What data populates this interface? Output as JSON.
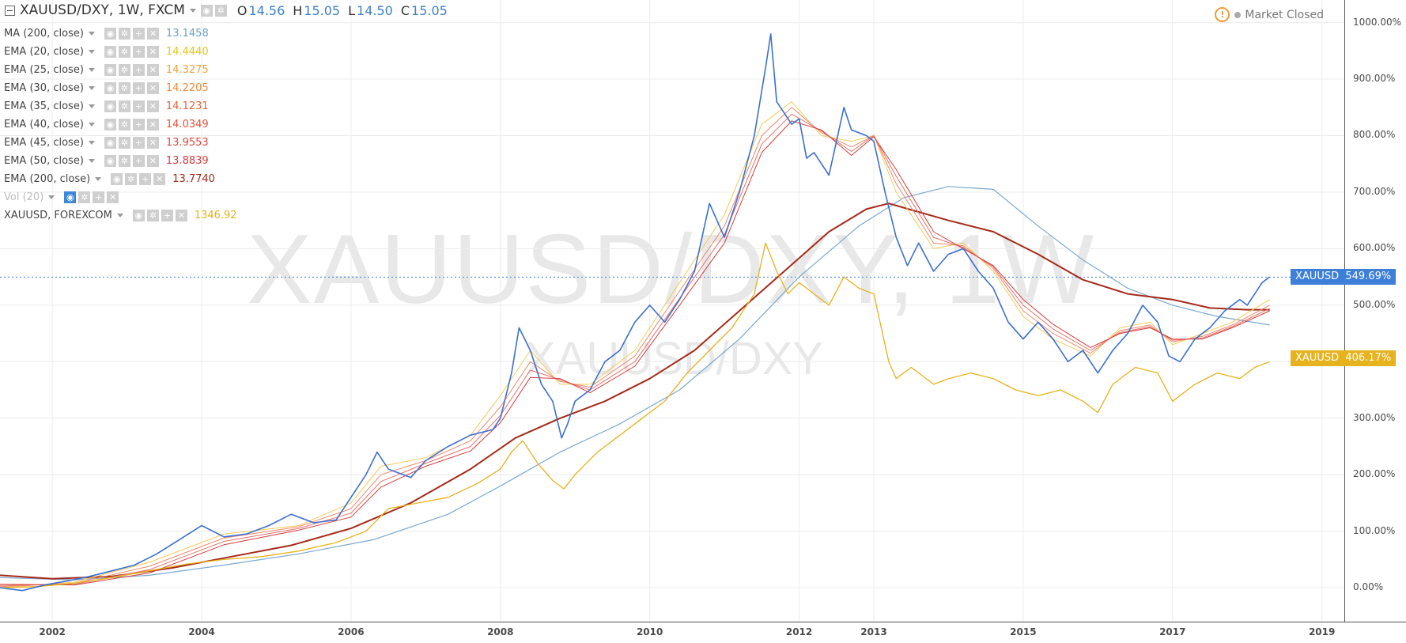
{
  "header": {
    "title": "XAUUSD/DXY, 1W, FXCM",
    "ohlc": [
      {
        "label": "O",
        "value": "14.56"
      },
      {
        "label": "H",
        "value": "15.05"
      },
      {
        "label": "L",
        "value": "14.50"
      },
      {
        "label": "C",
        "value": "15.05"
      }
    ],
    "status_text": "Market Closed",
    "warning_icon": "exclamation-circle-icon"
  },
  "watermark": {
    "main": "XAUUSD/DXY, 1W",
    "sub": "XAUUSD/DXY"
  },
  "indicators": [
    {
      "name": "MA (200, close)",
      "value": "13.1458",
      "color": "#6a9fc7",
      "muted": false
    },
    {
      "name": "EMA (20, close)",
      "value": "14.4440",
      "color": "#e0c619",
      "muted": false
    },
    {
      "name": "EMA (25, close)",
      "value": "14.3275",
      "color": "#f0a23a",
      "muted": false
    },
    {
      "name": "EMA (30, close)",
      "value": "14.2205",
      "color": "#ef8a3a",
      "muted": false
    },
    {
      "name": "EMA (35, close)",
      "value": "14.1231",
      "color": "#e8623a",
      "muted": false
    },
    {
      "name": "EMA (40, close)",
      "value": "14.0349",
      "color": "#e4503a",
      "muted": false
    },
    {
      "name": "EMA (45, close)",
      "value": "13.9553",
      "color": "#e0453d",
      "muted": false
    },
    {
      "name": "EMA (50, close)",
      "value": "13.8839",
      "color": "#d63c3c",
      "muted": false
    },
    {
      "name": "EMA (200, close)",
      "value": "13.7740",
      "color": "#a52a1a",
      "muted": false
    },
    {
      "name": "Vol (20)",
      "value": "",
      "color": "#bdbdbd",
      "muted": true
    },
    {
      "name": "XAUUSD, FOREXCOM",
      "value": "1346.92",
      "color": "#e6b21e",
      "muted": false
    }
  ],
  "price_tags": [
    {
      "label": "XAUUSD",
      "value": "549.69%",
      "color": "#3d7fd9"
    },
    {
      "label": "XAUUSD",
      "value": "406.17%",
      "color": "#e6b21e"
    }
  ],
  "chart_data": {
    "type": "line",
    "title": "XAUUSD/DXY, 1W, FXCM",
    "xlabel": "",
    "ylabel": "",
    "x_ticks": [
      "2002",
      "2004",
      "2006",
      "2008",
      "2010",
      "2012",
      "2013",
      "2015",
      "2017",
      "2019"
    ],
    "y_ticks": [
      "0.00%",
      "100.00%",
      "200.00%",
      "300.00%",
      "400.00%",
      "500.00%",
      "600.00%",
      "700.00%",
      "800.00%",
      "900.00%",
      "1000.00%"
    ],
    "y_unit": "%",
    "ylim": [
      -60,
      1040
    ],
    "xlim": [
      2001.3,
      2019.3
    ],
    "grid": true,
    "last_value_line": 549.69,
    "series": [
      {
        "name": "XAUUSD/DXY",
        "color": "#3d6fd0",
        "width": 1.6,
        "x": [
          2001.3,
          2001.6,
          2001.9,
          2002.2,
          2002.5,
          2002.8,
          2003.1,
          2003.4,
          2003.7,
          2004.0,
          2004.3,
          2004.6,
          2004.9,
          2005.2,
          2005.5,
          2005.8,
          2006.0,
          2006.2,
          2006.35,
          2006.5,
          2006.8,
          2007.0,
          2007.3,
          2007.6,
          2007.9,
          2008.0,
          2008.15,
          2008.25,
          2008.4,
          2008.55,
          2008.7,
          2008.82,
          2008.9,
          2009.0,
          2009.2,
          2009.4,
          2009.6,
          2009.8,
          2010.0,
          2010.2,
          2010.4,
          2010.6,
          2010.8,
          2011.0,
          2011.2,
          2011.4,
          2011.55,
          2011.62,
          2011.7,
          2011.8,
          2011.9,
          2012.0,
          2012.1,
          2012.2,
          2012.4,
          2012.5,
          2012.6,
          2012.7,
          2012.9,
          2013.0,
          2013.15,
          2013.3,
          2013.45,
          2013.6,
          2013.8,
          2014.0,
          2014.2,
          2014.4,
          2014.6,
          2014.8,
          2015.0,
          2015.2,
          2015.4,
          2015.6,
          2015.8,
          2016.0,
          2016.2,
          2016.4,
          2016.6,
          2016.8,
          2016.95,
          2017.1,
          2017.3,
          2017.5,
          2017.7,
          2017.9,
          2018.0,
          2018.1,
          2018.2,
          2018.3
        ],
        "values": [
          0,
          -5,
          5,
          12,
          20,
          30,
          40,
          60,
          85,
          110,
          90,
          95,
          110,
          130,
          115,
          120,
          160,
          200,
          240,
          210,
          195,
          225,
          250,
          270,
          280,
          300,
          380,
          460,
          420,
          360,
          330,
          265,
          290,
          330,
          350,
          400,
          420,
          470,
          500,
          470,
          510,
          560,
          680,
          620,
          700,
          800,
          920,
          980,
          860,
          840,
          820,
          830,
          760,
          770,
          730,
          790,
          850,
          810,
          800,
          790,
          700,
          620,
          570,
          610,
          560,
          590,
          600,
          560,
          530,
          470,
          440,
          470,
          440,
          400,
          420,
          380,
          420,
          450,
          500,
          470,
          410,
          400,
          440,
          460,
          490,
          510,
          500,
          520,
          540,
          550
        ]
      },
      {
        "name": "XAUUSD, FOREXCOM",
        "color": "#e6b21e",
        "width": 1.3,
        "x": [
          2001.3,
          2001.8,
          2002.3,
          2002.8,
          2003.3,
          2003.8,
          2004.3,
          2004.8,
          2005.3,
          2005.8,
          2006.2,
          2006.5,
          2006.9,
          2007.3,
          2007.7,
          2008.0,
          2008.15,
          2008.3,
          2008.5,
          2008.7,
          2008.85,
          2009.0,
          2009.3,
          2009.6,
          2009.9,
          2010.2,
          2010.5,
          2010.8,
          2011.1,
          2011.4,
          2011.55,
          2011.7,
          2011.85,
          2012.0,
          2012.2,
          2012.4,
          2012.6,
          2012.8,
          2013.0,
          2013.2,
          2013.3,
          2013.5,
          2013.8,
          2014.0,
          2014.3,
          2014.6,
          2014.9,
          2015.2,
          2015.5,
          2015.8,
          2016.0,
          2016.2,
          2016.5,
          2016.8,
          2017.0,
          2017.3,
          2017.6,
          2017.9,
          2018.1,
          2018.3
        ],
        "values": [
          0,
          2,
          8,
          18,
          30,
          42,
          50,
          55,
          65,
          80,
          100,
          140,
          150,
          160,
          185,
          210,
          240,
          260,
          220,
          190,
          175,
          200,
          240,
          270,
          300,
          330,
          380,
          420,
          460,
          520,
          610,
          560,
          520,
          540,
          520,
          500,
          550,
          530,
          520,
          400,
          370,
          390,
          360,
          370,
          380,
          370,
          350,
          340,
          350,
          330,
          310,
          360,
          390,
          380,
          330,
          360,
          380,
          370,
          390,
          400
        ]
      },
      {
        "name": "MA (200, close)",
        "color": "#7aa8cf",
        "width": 1.2,
        "x": [
          2001.3,
          2002.3,
          2003.3,
          2004.3,
          2005.3,
          2006.3,
          2007.3,
          2008.0,
          2008.8,
          2009.6,
          2010.4,
          2011.2,
          2012.0,
          2012.8,
          2013.4,
          2014.0,
          2014.6,
          2015.2,
          2015.8,
          2016.4,
          2017.0,
          2017.6,
          2018.3
        ],
        "values": [
          18,
          14,
          22,
          40,
          60,
          85,
          130,
          180,
          240,
          290,
          350,
          440,
          550,
          640,
          690,
          710,
          705,
          640,
          580,
          530,
          500,
          480,
          465
        ]
      },
      {
        "name": "EMA (200, close)",
        "color": "#a52a1a",
        "width": 2.0,
        "x": [
          2001.3,
          2002.0,
          2002.8,
          2003.6,
          2004.4,
          2005.2,
          2006.0,
          2006.8,
          2007.6,
          2008.2,
          2008.8,
          2009.4,
          2010.0,
          2010.6,
          2011.2,
          2011.8,
          2012.4,
          2012.9,
          2013.2,
          2013.6,
          2014.0,
          2014.6,
          2015.2,
          2015.8,
          2016.4,
          2017.0,
          2017.5,
          2018.0,
          2018.3
        ],
        "values": [
          22,
          16,
          20,
          35,
          55,
          75,
          105,
          150,
          210,
          265,
          300,
          330,
          370,
          420,
          490,
          560,
          630,
          670,
          680,
          665,
          650,
          630,
          590,
          545,
          520,
          510,
          495,
          492,
          492
        ]
      },
      {
        "name": "EMA (20, close)",
        "color": "#f2cb5a",
        "width": 1.0,
        "x": [
          2001.3,
          2002.3,
          2003.3,
          2004.3,
          2005.3,
          2006.0,
          2006.4,
          2007.0,
          2007.6,
          2008.0,
          2008.4,
          2008.8,
          2009.2,
          2009.8,
          2010.4,
          2011.0,
          2011.5,
          2011.9,
          2012.3,
          2012.7,
          2013.0,
          2013.3,
          2013.8,
          2014.2,
          2014.6,
          2015.0,
          2015.4,
          2015.9,
          2016.3,
          2016.7,
          2017.0,
          2017.4,
          2017.8,
          2018.3
        ],
        "values": [
          0,
          10,
          45,
          95,
          110,
          150,
          215,
          230,
          270,
          340,
          420,
          360,
          360,
          420,
          540,
          660,
          820,
          860,
          800,
          790,
          800,
          700,
          600,
          610,
          560,
          480,
          440,
          410,
          460,
          470,
          430,
          450,
          470,
          510
        ]
      },
      {
        "name": "EMA (30, close)",
        "color": "#ef8a6a",
        "width": 1.0,
        "x": [
          2001.3,
          2002.3,
          2003.3,
          2004.3,
          2005.3,
          2006.0,
          2006.4,
          2007.0,
          2007.6,
          2008.0,
          2008.4,
          2008.8,
          2009.2,
          2009.8,
          2010.4,
          2011.0,
          2011.5,
          2011.9,
          2012.3,
          2012.7,
          2013.0,
          2013.3,
          2013.8,
          2014.2,
          2014.6,
          2015.0,
          2015.4,
          2015.9,
          2016.3,
          2016.7,
          2017.0,
          2017.4,
          2017.8,
          2018.3
        ],
        "values": [
          2,
          8,
          38,
          88,
          108,
          140,
          200,
          225,
          260,
          320,
          400,
          365,
          355,
          410,
          525,
          640,
          800,
          850,
          805,
          780,
          800,
          715,
          610,
          605,
          565,
          490,
          450,
          415,
          455,
          465,
          435,
          445,
          465,
          500
        ]
      },
      {
        "name": "EMA (40, close)",
        "color": "#e8706a",
        "width": 1.0,
        "x": [
          2001.3,
          2002.3,
          2003.3,
          2004.3,
          2005.3,
          2006.0,
          2006.4,
          2007.0,
          2007.6,
          2008.0,
          2008.4,
          2008.8,
          2009.2,
          2009.8,
          2010.4,
          2011.0,
          2011.5,
          2011.9,
          2012.3,
          2012.7,
          2013.0,
          2013.3,
          2013.8,
          2014.2,
          2014.6,
          2015.0,
          2015.4,
          2015.9,
          2016.3,
          2016.7,
          2017.0,
          2017.4,
          2017.8,
          2018.3
        ],
        "values": [
          4,
          6,
          32,
          82,
          105,
          132,
          188,
          220,
          250,
          305,
          385,
          368,
          350,
          400,
          512,
          625,
          785,
          838,
          808,
          772,
          800,
          728,
          620,
          602,
          568,
          500,
          458,
          420,
          452,
          462,
          438,
          442,
          462,
          494
        ]
      },
      {
        "name": "EMA (50, close)",
        "color": "#d63c3c",
        "width": 1.0,
        "x": [
          2001.3,
          2002.3,
          2003.3,
          2004.3,
          2005.3,
          2006.0,
          2006.4,
          2007.0,
          2007.6,
          2008.0,
          2008.4,
          2008.8,
          2009.2,
          2009.8,
          2010.4,
          2011.0,
          2011.5,
          2011.9,
          2012.3,
          2012.7,
          2013.0,
          2013.3,
          2013.8,
          2014.2,
          2014.6,
          2015.0,
          2015.4,
          2015.9,
          2016.3,
          2016.7,
          2017.0,
          2017.4,
          2017.8,
          2018.3
        ],
        "values": [
          6,
          5,
          26,
          76,
          102,
          125,
          178,
          215,
          242,
          292,
          372,
          370,
          345,
          392,
          500,
          610,
          770,
          826,
          810,
          765,
          798,
          740,
          630,
          600,
          570,
          510,
          466,
          425,
          450,
          460,
          440,
          440,
          460,
          490
        ]
      }
    ]
  }
}
